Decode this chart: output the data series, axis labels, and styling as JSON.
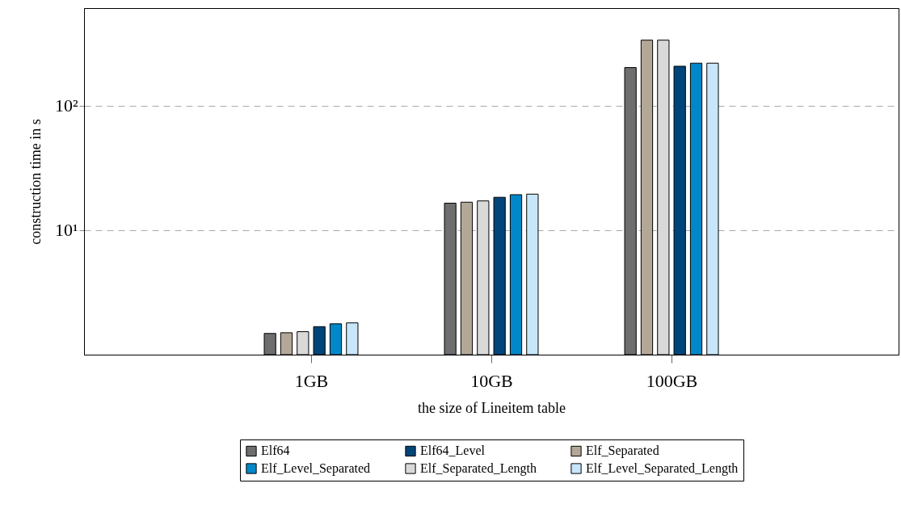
{
  "chart_data": {
    "type": "bar",
    "xlabel": "the size of Lineitem table",
    "ylabel": "construction time in s",
    "categories": [
      "1GB",
      "10GB",
      "100GB"
    ],
    "series": [
      {
        "name": "Elf64",
        "color": "#6e6e6e",
        "values": [
          1.48,
          16.5,
          203
        ]
      },
      {
        "name": "Elf_Separated",
        "color": "#b3a898",
        "values": [
          1.5,
          16.8,
          337
        ]
      },
      {
        "name": "Elf_Separated_Length",
        "color": "#d9d9d9",
        "values": [
          1.53,
          17.2,
          337
        ]
      },
      {
        "name": "Elf64_Level",
        "color": "#00457a",
        "values": [
          1.68,
          18.4,
          208
        ]
      },
      {
        "name": "Elf_Level_Separated",
        "color": "#0088c8",
        "values": [
          1.77,
          19.3,
          220
        ]
      },
      {
        "name": "Elf_Level_Separated_Length",
        "color": "#c8e6fa",
        "values": [
          1.8,
          19.5,
          220
        ]
      }
    ],
    "log": "y",
    "ylim": [
      1,
      610
    ],
    "yticks": [
      {
        "value": 10,
        "label": "10¹"
      },
      {
        "value": 100,
        "label": "10²"
      }
    ],
    "grid": "y",
    "legend": "bottom"
  }
}
